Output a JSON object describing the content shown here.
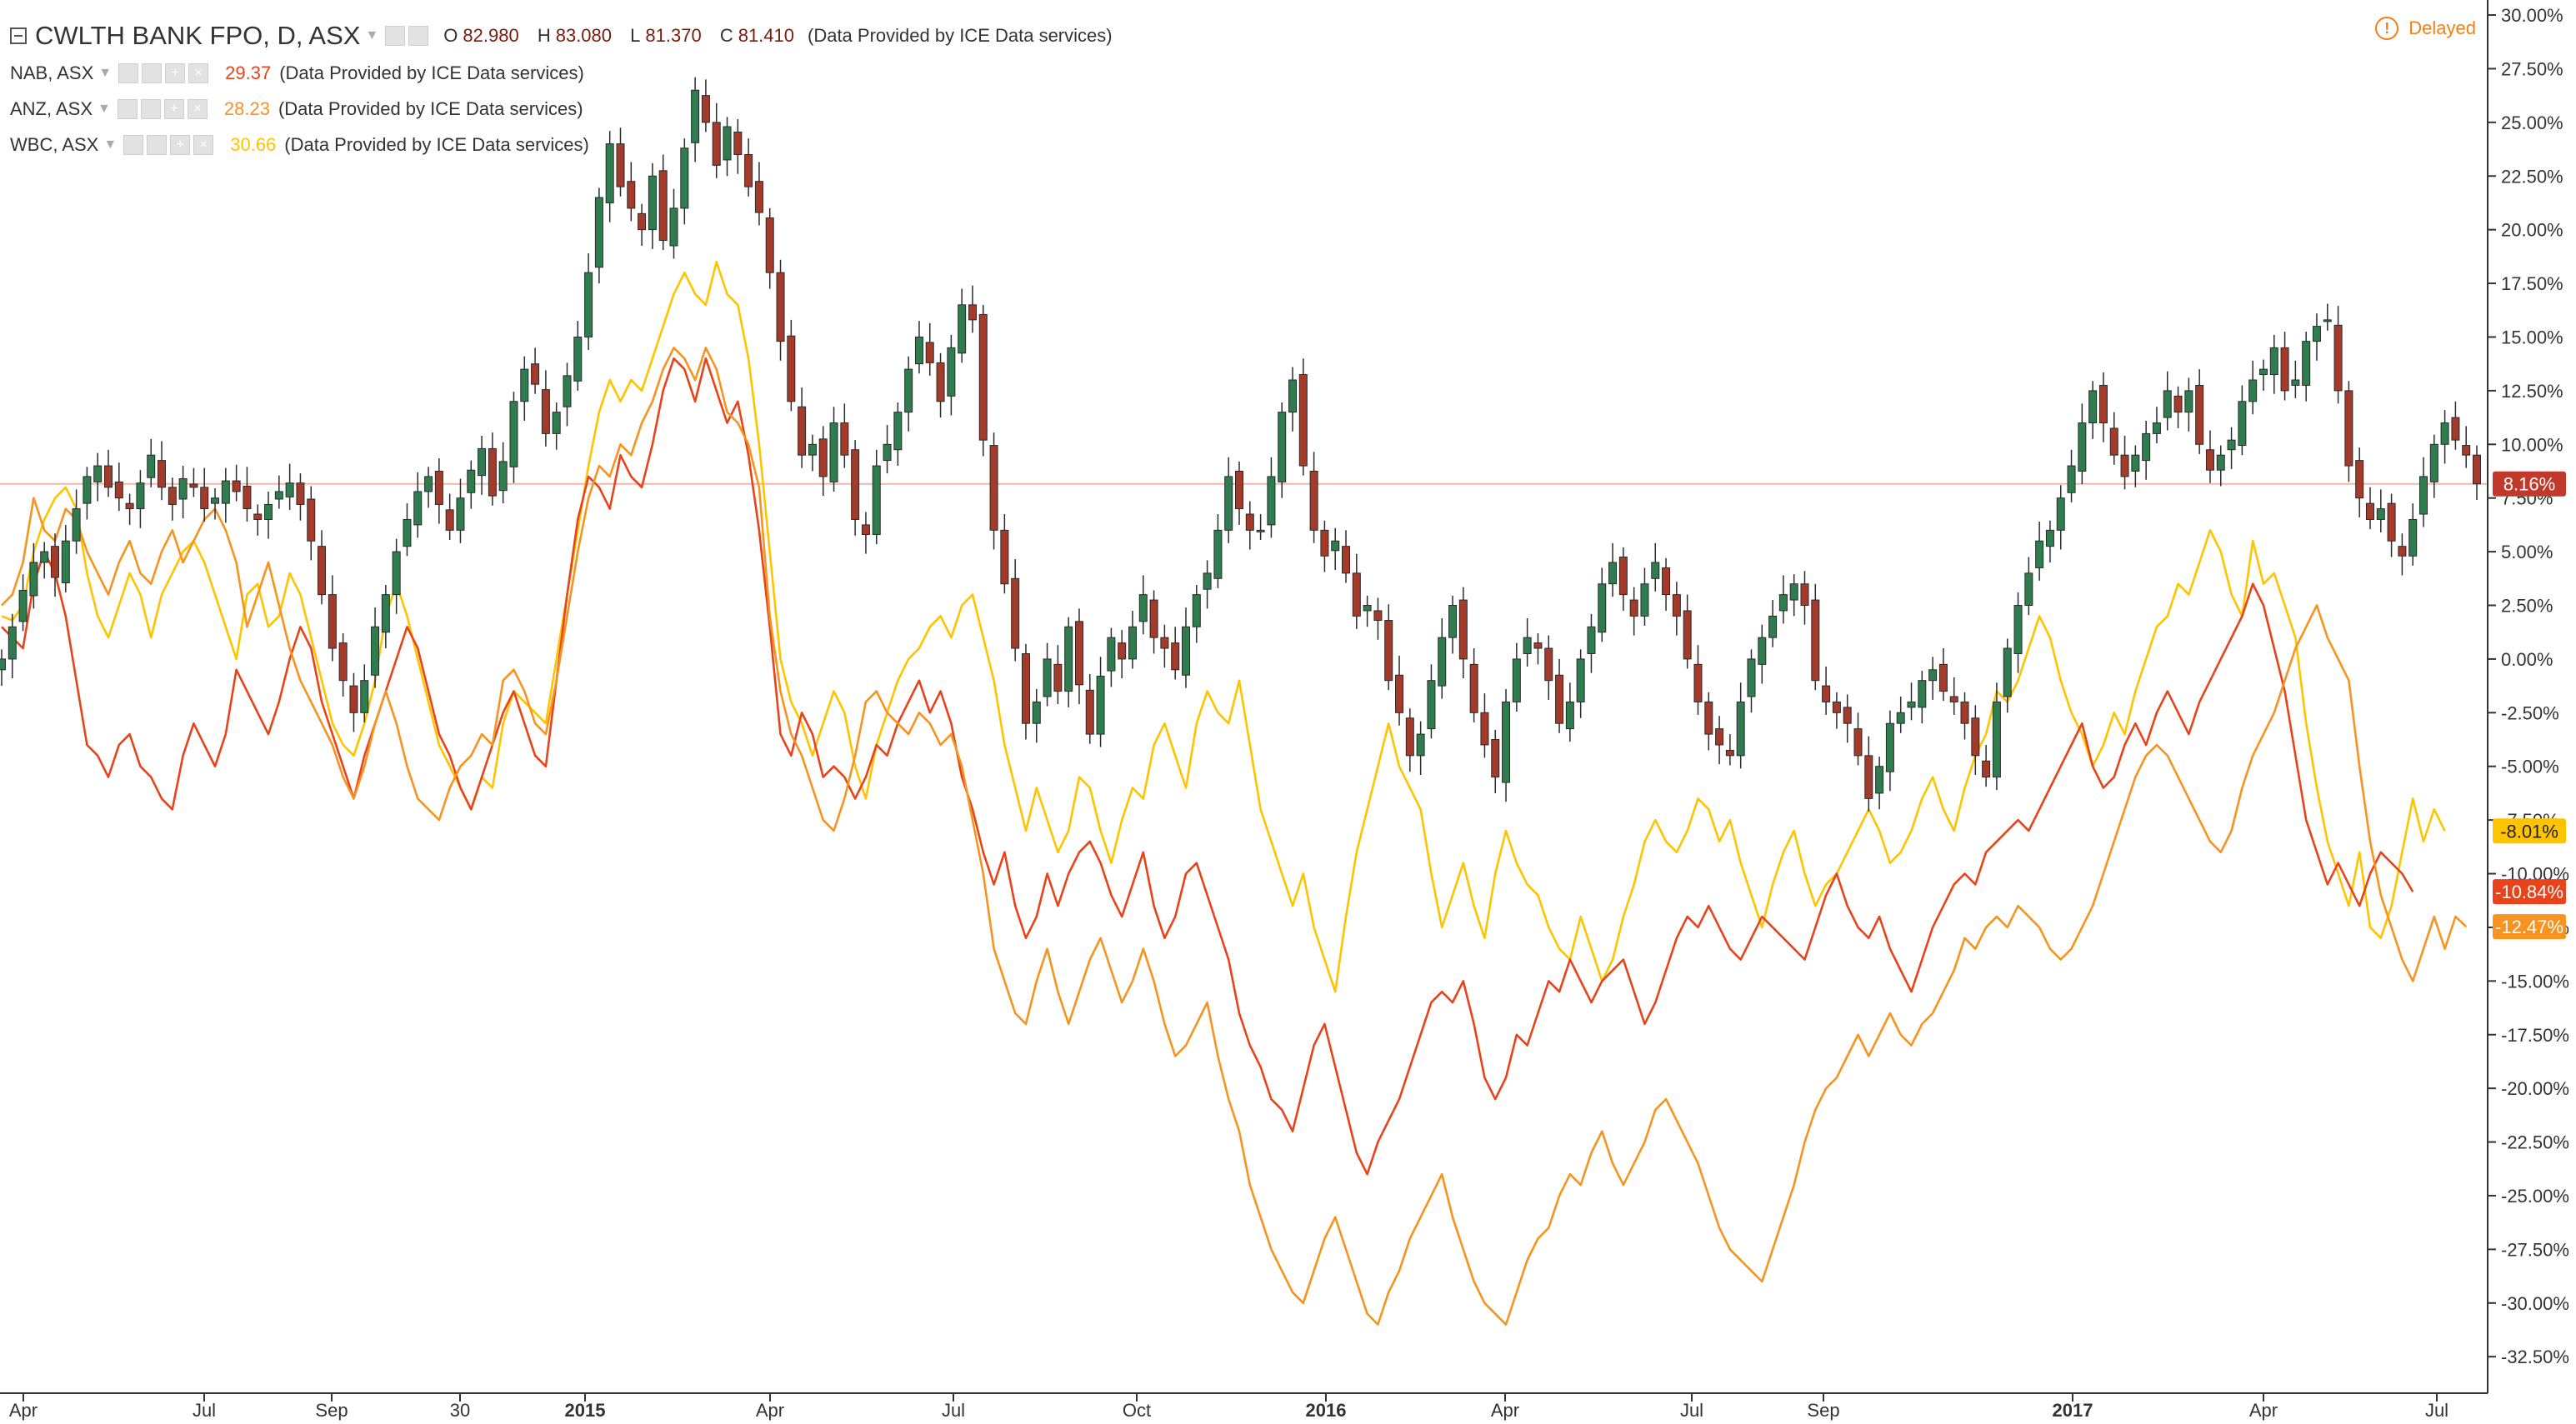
{
  "header": {
    "main": {
      "name": "CWLTH BANK FPO, D, ASX",
      "ohlc": [
        {
          "k": "O",
          "v": "82.980"
        },
        {
          "k": "H",
          "v": "83.080"
        },
        {
          "k": "L",
          "v": "81.370"
        },
        {
          "k": "C",
          "v": "81.410"
        }
      ],
      "provider": "(Data Provided by ICE Data services)"
    },
    "comparisons": [
      {
        "name": "NAB, ASX",
        "value": "29.37",
        "color": "#e8431b",
        "provider": "(Data Provided by ICE Data services)"
      },
      {
        "name": "ANZ, ASX",
        "value": "28.23",
        "color": "#f7931e",
        "provider": "(Data Provided by ICE Data services)"
      },
      {
        "name": "WBC, ASX",
        "value": "30.66",
        "color": "#ffc400",
        "provider": "(Data Provided by ICE Data services)"
      }
    ],
    "delayed": "Delayed"
  },
  "chart_data": {
    "type": "line",
    "x_ticks": [
      "Apr",
      "Jul",
      "Sep",
      "30",
      "2015",
      "Apr",
      "Jul",
      "Oct",
      "2016",
      "Apr",
      "Jul",
      "Sep",
      "2017",
      "Apr",
      "Jul"
    ],
    "bold_ticks": [
      "2015",
      "2016",
      "2017"
    ],
    "y_ticks": [
      "30.00%",
      "27.50%",
      "25.00%",
      "22.50%",
      "20.00%",
      "17.50%",
      "15.00%",
      "12.50%",
      "10.00%",
      "7.50%",
      "5.00%",
      "2.50%",
      "0.00%",
      "-2.50%",
      "-5.00%",
      "-7.50%",
      "-10.00%",
      "-12.50%",
      "-15.00%",
      "-17.50%",
      "-20.00%",
      "-22.50%",
      "-25.00%",
      "-27.50%",
      "-30.00%",
      "-32.50%"
    ],
    "ylim": [
      -34.2,
      30.7
    ],
    "last_price_line": 8.16,
    "badges": [
      {
        "text": "8.16%",
        "value": 8.16,
        "color": "#c0392b"
      },
      {
        "text": "-8.01%",
        "value": -8.01,
        "color": "#ffc400"
      },
      {
        "text": "-10.84%",
        "value": -10.84,
        "color": "#e8431b"
      },
      {
        "text": "-12.47%",
        "value": -12.47,
        "color": "#f7931e"
      }
    ],
    "series": [
      {
        "name": "CWLTH BANK FPO",
        "style": "candles",
        "up_color": "#2f7d4f",
        "down_color": "#a33a2a",
        "values": [
          0.0,
          1.5,
          3.2,
          4.5,
          5.0,
          3.8,
          5.5,
          7.0,
          8.5,
          9.0,
          8.0,
          7.5,
          7.0,
          8.2,
          9.5,
          8.0,
          7.2,
          8.4,
          8.0,
          7.0,
          7.5,
          8.3,
          7.8,
          7.0,
          6.5,
          7.2,
          7.8,
          8.2,
          7.2,
          5.5,
          3.0,
          0.5,
          -1.0,
          -2.5,
          -1.0,
          1.5,
          3.0,
          5.0,
          6.5,
          7.8,
          8.5,
          7.2,
          6.0,
          7.5,
          8.8,
          9.8,
          7.6,
          9.2,
          12.0,
          13.5,
          12.8,
          10.5,
          11.5,
          13.2,
          15.0,
          18.0,
          21.5,
          24.0,
          22.0,
          21.0,
          20.0,
          22.5,
          19.5,
          21.0,
          23.8,
          26.5,
          25.0,
          23.0,
          24.8,
          23.5,
          22.0,
          20.8,
          18.0,
          14.8,
          12.0,
          9.5,
          10.0,
          8.5,
          11.0,
          9.5,
          6.5,
          5.8,
          9.0,
          10.0,
          11.5,
          13.5,
          15.0,
          13.8,
          12.0,
          14.5,
          16.5,
          15.8,
          10.2,
          6.0,
          3.5,
          0.5,
          -3.0,
          -2.0,
          0.0,
          -1.5,
          1.5,
          -1.2,
          -3.5,
          -0.8,
          1.0,
          0.0,
          1.5,
          3.0,
          1.0,
          0.5,
          -0.5,
          1.5,
          3.0,
          4.0,
          6.0,
          8.5,
          7.0,
          6.0,
          6.0,
          8.5,
          11.5,
          13.0,
          9.0,
          6.0,
          4.8,
          5.5,
          4.0,
          2.0,
          2.5,
          1.8,
          -1.0,
          -2.5,
          -4.5,
          -3.5,
          -1.0,
          1.0,
          2.5,
          0.0,
          -2.5,
          -4.0,
          -5.5,
          -2.0,
          0.0,
          1.0,
          0.5,
          -1.0,
          -3.0,
          -2.0,
          0.0,
          1.5,
          3.5,
          4.5,
          3.0,
          2.0,
          3.5,
          4.5,
          3.0,
          2.0,
          0.0,
          -2.0,
          -3.5,
          -4.0,
          -4.5,
          -2.0,
          0.0,
          1.0,
          2.0,
          3.0,
          3.5,
          2.5,
          -1.0,
          -2.0,
          -2.5,
          -3.0,
          -4.5,
          -6.5,
          -5.0,
          -3.0,
          -2.5,
          -2.0,
          -1.0,
          -0.5,
          -1.5,
          -2.0,
          -3.0,
          -4.5,
          -5.5,
          -2.0,
          0.5,
          2.5,
          4.0,
          5.5,
          6.0,
          7.5,
          9.0,
          11.0,
          12.5,
          11.0,
          9.5,
          8.5,
          9.5,
          10.5,
          11.0,
          12.5,
          11.5,
          12.5,
          10.0,
          8.8,
          9.5,
          10.2,
          12.0,
          13.0,
          13.5,
          14.5,
          12.5,
          13.0,
          14.8,
          15.5,
          15.8,
          12.5,
          9.0,
          7.5,
          6.5,
          7.0,
          5.5,
          4.8,
          6.5,
          8.5,
          10.0,
          11.0,
          10.2,
          9.5,
          8.16
        ]
      },
      {
        "name": "WBC, ASX",
        "style": "line",
        "color": "#ffc400",
        "values": [
          2.0,
          1.8,
          2.5,
          5.0,
          6.5,
          7.5,
          8.0,
          7.0,
          4.0,
          2.0,
          1.0,
          2.5,
          4.0,
          3.0,
          1.0,
          3.0,
          4.0,
          5.0,
          5.5,
          4.5,
          3.0,
          1.5,
          0.0,
          3.0,
          3.5,
          1.5,
          2.0,
          4.0,
          3.0,
          1.0,
          -1.0,
          -3.0,
          -4.0,
          -4.5,
          -3.0,
          -1.0,
          2.0,
          3.5,
          2.0,
          0.0,
          -2.0,
          -4.0,
          -5.0,
          -6.0,
          -7.0,
          -5.5,
          -6.0,
          -3.0,
          -1.5,
          -2.0,
          -2.5,
          -3.0,
          0.0,
          3.0,
          6.0,
          9.0,
          11.5,
          13.0,
          12.0,
          13.0,
          12.5,
          14.0,
          15.5,
          17.0,
          18.0,
          17.0,
          16.5,
          18.5,
          17.0,
          16.5,
          14.0,
          10.0,
          5.0,
          0.0,
          -2.0,
          -3.0,
          -4.5,
          -3.0,
          -1.5,
          -2.5,
          -5.0,
          -6.5,
          -4.0,
          -2.5,
          -1.0,
          0.0,
          0.5,
          1.5,
          2.0,
          1.0,
          2.5,
          3.0,
          1.0,
          -1.0,
          -4.0,
          -6.0,
          -8.0,
          -6.0,
          -7.5,
          -9.0,
          -8.0,
          -5.5,
          -6.0,
          -8.0,
          -9.5,
          -7.5,
          -6.0,
          -6.5,
          -4.0,
          -3.0,
          -4.5,
          -6.0,
          -3.0,
          -1.5,
          -2.5,
          -3.0,
          -1.0,
          -4.0,
          -7.0,
          -8.5,
          -10.0,
          -11.5,
          -10.0,
          -12.5,
          -14.0,
          -15.5,
          -12.0,
          -9.0,
          -7.0,
          -5.0,
          -3.0,
          -5.0,
          -6.0,
          -7.0,
          -10.0,
          -12.5,
          -11.0,
          -9.5,
          -11.5,
          -13.0,
          -10.0,
          -8.0,
          -9.5,
          -10.5,
          -11.0,
          -12.5,
          -13.5,
          -14.0,
          -12.0,
          -13.5,
          -15.0,
          -14.0,
          -12.0,
          -10.5,
          -8.5,
          -7.5,
          -8.5,
          -9.0,
          -8.0,
          -6.5,
          -7.0,
          -8.5,
          -7.5,
          -9.5,
          -11.0,
          -12.5,
          -10.5,
          -9.0,
          -8.0,
          -10.0,
          -11.5,
          -10.5,
          -10.0,
          -9.0,
          -8.0,
          -7.0,
          -8.0,
          -9.5,
          -9.0,
          -8.0,
          -6.5,
          -5.5,
          -7.0,
          -8.0,
          -6.0,
          -4.5,
          -3.5,
          -1.5,
          -2.0,
          -1.0,
          0.5,
          2.0,
          1.0,
          -1.0,
          -2.5,
          -3.5,
          -5.0,
          -4.0,
          -2.5,
          -3.5,
          -1.5,
          0.0,
          1.5,
          2.0,
          3.5,
          3.0,
          4.5,
          6.0,
          5.0,
          3.0,
          2.0,
          5.5,
          3.5,
          4.0,
          2.5,
          1.0,
          -3.0,
          -6.0,
          -8.5,
          -10.0,
          -11.5,
          -9.0,
          -12.5,
          -13.0,
          -11.5,
          -9.0,
          -6.5,
          -8.5,
          -7.0,
          -8.01
        ]
      },
      {
        "name": "NAB, ASX",
        "style": "line",
        "color": "#e8431b",
        "values": [
          1.5,
          1.0,
          0.5,
          3.5,
          5.0,
          4.0,
          2.0,
          -1.0,
          -4.0,
          -4.5,
          -5.5,
          -4.0,
          -3.5,
          -5.0,
          -5.5,
          -6.5,
          -7.0,
          -4.5,
          -3.0,
          -4.0,
          -5.0,
          -3.5,
          -0.5,
          -1.5,
          -2.5,
          -3.5,
          -2.0,
          0.0,
          1.5,
          0.5,
          -2.0,
          -3.5,
          -5.0,
          -6.5,
          -4.5,
          -3.0,
          -1.5,
          0.0,
          1.5,
          0.5,
          -1.5,
          -3.5,
          -4.5,
          -6.0,
          -7.0,
          -5.5,
          -4.0,
          -2.5,
          -1.5,
          -3.0,
          -4.5,
          -5.0,
          -1.0,
          3.0,
          6.5,
          8.5,
          8.0,
          7.0,
          9.5,
          8.5,
          8.0,
          10.0,
          12.5,
          14.0,
          13.5,
          12.0,
          14.0,
          12.5,
          11.0,
          12.0,
          9.5,
          6.0,
          1.5,
          -3.5,
          -4.5,
          -2.5,
          -3.5,
          -5.5,
          -5.0,
          -5.5,
          -6.5,
          -5.5,
          -4.0,
          -4.5,
          -3.0,
          -2.0,
          -1.0,
          -2.5,
          -1.5,
          -3.0,
          -5.5,
          -7.0,
          -9.0,
          -10.5,
          -9.0,
          -11.5,
          -13.0,
          -12.0,
          -10.0,
          -11.5,
          -10.0,
          -9.0,
          -8.5,
          -9.5,
          -11.0,
          -12.0,
          -10.5,
          -9.0,
          -11.5,
          -13.0,
          -12.0,
          -10.0,
          -9.5,
          -11.0,
          -12.5,
          -14.0,
          -16.5,
          -18.0,
          -19.0,
          -20.5,
          -21.0,
          -22.0,
          -20.0,
          -18.0,
          -17.0,
          -19.0,
          -21.0,
          -23.0,
          -24.0,
          -22.5,
          -21.5,
          -20.5,
          -19.0,
          -17.5,
          -16.0,
          -15.5,
          -16.0,
          -15.0,
          -17.0,
          -19.5,
          -20.5,
          -19.5,
          -17.5,
          -18.0,
          -16.5,
          -15.0,
          -15.5,
          -14.0,
          -15.0,
          -16.0,
          -15.0,
          -14.5,
          -14.0,
          -15.5,
          -17.0,
          -16.0,
          -14.5,
          -13.0,
          -12.0,
          -12.5,
          -11.5,
          -12.5,
          -13.5,
          -14.0,
          -13.0,
          -12.0,
          -12.5,
          -13.0,
          -13.5,
          -14.0,
          -12.5,
          -11.0,
          -10.0,
          -11.5,
          -12.5,
          -13.0,
          -12.0,
          -13.5,
          -14.5,
          -15.5,
          -14.0,
          -12.5,
          -11.5,
          -10.5,
          -10.0,
          -10.5,
          -9.0,
          -8.5,
          -8.0,
          -7.5,
          -8.0,
          -7.0,
          -6.0,
          -5.0,
          -4.0,
          -3.0,
          -5.0,
          -6.0,
          -5.5,
          -4.0,
          -3.0,
          -4.0,
          -2.5,
          -1.5,
          -2.5,
          -3.5,
          -2.0,
          -1.0,
          0.0,
          1.0,
          2.0,
          3.5,
          2.5,
          0.5,
          -1.5,
          -4.5,
          -7.5,
          -9.0,
          -10.5,
          -9.5,
          -10.5,
          -11.5,
          -10.0,
          -9.0,
          -9.5,
          -10.0,
          -10.84
        ]
      },
      {
        "name": "ANZ, ASX",
        "style": "line",
        "color": "#f7931e",
        "values": [
          2.5,
          3.0,
          4.5,
          7.5,
          6.0,
          5.5,
          7.0,
          6.5,
          5.0,
          4.0,
          3.0,
          4.5,
          5.5,
          4.0,
          3.5,
          5.0,
          6.0,
          4.5,
          5.5,
          6.5,
          7.0,
          6.0,
          4.5,
          1.5,
          3.0,
          4.5,
          2.5,
          0.5,
          -1.0,
          -2.0,
          -3.0,
          -4.0,
          -5.5,
          -6.5,
          -5.0,
          -3.0,
          -1.5,
          -3.0,
          -5.0,
          -6.5,
          -7.0,
          -7.5,
          -6.0,
          -5.0,
          -4.5,
          -3.5,
          -4.0,
          -1.0,
          -0.5,
          -1.5,
          -3.0,
          -3.5,
          -1.0,
          2.0,
          5.0,
          7.5,
          9.0,
          8.5,
          10.0,
          9.5,
          11.0,
          12.0,
          13.5,
          14.5,
          14.0,
          13.0,
          14.5,
          13.5,
          11.5,
          11.0,
          10.0,
          8.0,
          2.0,
          -1.5,
          -3.5,
          -4.5,
          -6.0,
          -7.5,
          -8.0,
          -6.5,
          -4.5,
          -2.0,
          -1.5,
          -2.5,
          -3.0,
          -3.5,
          -2.5,
          -3.0,
          -4.0,
          -3.5,
          -5.0,
          -7.5,
          -10.0,
          -13.5,
          -15.0,
          -16.5,
          -17.0,
          -15.0,
          -13.5,
          -15.5,
          -17.0,
          -15.5,
          -14.0,
          -13.0,
          -14.5,
          -16.0,
          -15.0,
          -13.5,
          -15.0,
          -17.0,
          -18.5,
          -18.0,
          -17.0,
          -16.0,
          -18.5,
          -20.5,
          -22.0,
          -24.5,
          -26.0,
          -27.5,
          -28.5,
          -29.5,
          -30.0,
          -28.5,
          -27.0,
          -26.0,
          -27.5,
          -29.0,
          -30.5,
          -31.0,
          -29.5,
          -28.5,
          -27.0,
          -26.0,
          -25.0,
          -24.0,
          -26.0,
          -27.5,
          -29.0,
          -30.0,
          -30.5,
          -31.0,
          -29.5,
          -28.0,
          -27.0,
          -26.5,
          -25.0,
          -24.0,
          -24.5,
          -23.0,
          -22.0,
          -23.5,
          -24.5,
          -23.5,
          -22.5,
          -21.0,
          -20.5,
          -21.5,
          -22.5,
          -23.5,
          -25.0,
          -26.5,
          -27.5,
          -28.0,
          -28.5,
          -29.0,
          -27.5,
          -26.0,
          -24.5,
          -22.5,
          -21.0,
          -20.0,
          -19.5,
          -18.5,
          -17.5,
          -18.5,
          -17.5,
          -16.5,
          -17.5,
          -18.0,
          -17.0,
          -16.5,
          -15.5,
          -14.5,
          -13.0,
          -13.5,
          -12.5,
          -12.0,
          -12.5,
          -11.5,
          -12.0,
          -12.5,
          -13.5,
          -14.0,
          -13.5,
          -12.5,
          -11.5,
          -10.0,
          -8.5,
          -7.0,
          -5.5,
          -4.5,
          -4.0,
          -4.5,
          -5.5,
          -6.5,
          -7.5,
          -8.5,
          -9.0,
          -8.0,
          -6.0,
          -4.5,
          -3.5,
          -2.5,
          -1.0,
          0.5,
          1.5,
          2.5,
          1.0,
          0.0,
          -1.0,
          -5.0,
          -8.5,
          -11.0,
          -12.5,
          -14.0,
          -15.0,
          -13.5,
          -12.0,
          -13.5,
          -12.0,
          -12.47
        ]
      }
    ]
  }
}
